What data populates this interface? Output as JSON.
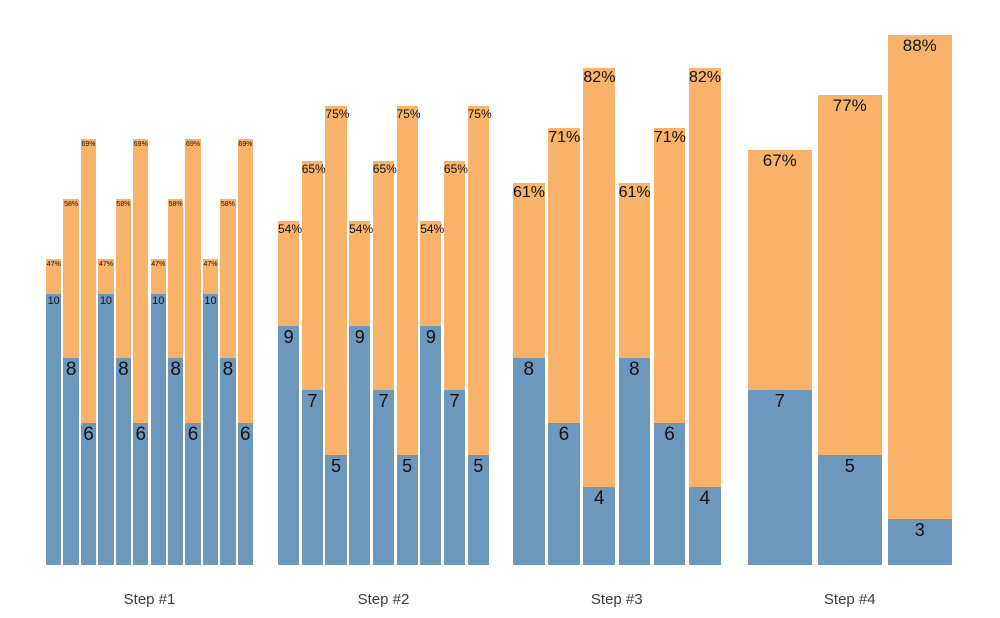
{
  "chart_data": {
    "type": "bar",
    "title": "",
    "xlabel": "",
    "ylabel": "",
    "legend": "none",
    "grid": "off",
    "axes_visible": false,
    "colors": {
      "blue_series": "#6d98bd",
      "orange_series": "#f9b269",
      "bar_label_color": "#111111",
      "axis_label_color": "#3c3c3c",
      "background": "#ffffff"
    },
    "groups": [
      {
        "label": "Step #1",
        "bars": [
          {
            "value": 10,
            "value_label": "10",
            "pct": 47,
            "pct_label": "47%"
          },
          {
            "value": 8,
            "value_label": "8",
            "pct": 58,
            "pct_label": "58%"
          },
          {
            "value": 6,
            "value_label": "6",
            "pct": 69,
            "pct_label": "69%"
          },
          {
            "value": 10,
            "value_label": "10",
            "pct": 47,
            "pct_label": "47%"
          },
          {
            "value": 8,
            "value_label": "8",
            "pct": 58,
            "pct_label": "58%"
          },
          {
            "value": 6,
            "value_label": "6",
            "pct": 69,
            "pct_label": "69%"
          },
          {
            "value": 10,
            "value_label": "10",
            "pct": 47,
            "pct_label": "47%"
          },
          {
            "value": 8,
            "value_label": "8",
            "pct": 58,
            "pct_label": "58%"
          },
          {
            "value": 6,
            "value_label": "6",
            "pct": 69,
            "pct_label": "69%"
          },
          {
            "value": 10,
            "value_label": "10",
            "pct": 47,
            "pct_label": "47%"
          },
          {
            "value": 8,
            "value_label": "8",
            "pct": 58,
            "pct_label": "58%"
          },
          {
            "value": 6,
            "value_label": "6",
            "pct": 69,
            "pct_label": "69%"
          }
        ]
      },
      {
        "label": "Step #2",
        "bars": [
          {
            "value": 9,
            "value_label": "9",
            "pct": 54,
            "pct_label": "54%"
          },
          {
            "value": 7,
            "value_label": "7",
            "pct": 65,
            "pct_label": "65%"
          },
          {
            "value": 5,
            "value_label": "5",
            "pct": 75,
            "pct_label": "75%"
          },
          {
            "value": 9,
            "value_label": "9",
            "pct": 54,
            "pct_label": "54%"
          },
          {
            "value": 7,
            "value_label": "7",
            "pct": 65,
            "pct_label": "65%"
          },
          {
            "value": 5,
            "value_label": "5",
            "pct": 75,
            "pct_label": "75%"
          },
          {
            "value": 9,
            "value_label": "9",
            "pct": 54,
            "pct_label": "54%"
          },
          {
            "value": 7,
            "value_label": "7",
            "pct": 65,
            "pct_label": "65%"
          },
          {
            "value": 5,
            "value_label": "5",
            "pct": 75,
            "pct_label": "75%"
          }
        ]
      },
      {
        "label": "Step #3",
        "bars": [
          {
            "value": 8,
            "value_label": "8",
            "pct": 61,
            "pct_label": "61%"
          },
          {
            "value": 6,
            "value_label": "6",
            "pct": 71,
            "pct_label": "71%"
          },
          {
            "value": 4,
            "value_label": "4",
            "pct": 82,
            "pct_label": "82%"
          },
          {
            "value": 8,
            "value_label": "8",
            "pct": 61,
            "pct_label": "61%"
          },
          {
            "value": 6,
            "value_label": "6",
            "pct": 71,
            "pct_label": "71%"
          },
          {
            "value": 4,
            "value_label": "4",
            "pct": 82,
            "pct_label": "82%"
          }
        ]
      },
      {
        "label": "Step #4",
        "bars": [
          {
            "value": 7,
            "value_label": "7",
            "pct": 67,
            "pct_label": "67%"
          },
          {
            "value": 5,
            "value_label": "5",
            "pct": 77,
            "pct_label": "77%"
          },
          {
            "value": 3,
            "value_label": "3",
            "pct": 88,
            "pct_label": "88%"
          }
        ]
      }
    ]
  }
}
